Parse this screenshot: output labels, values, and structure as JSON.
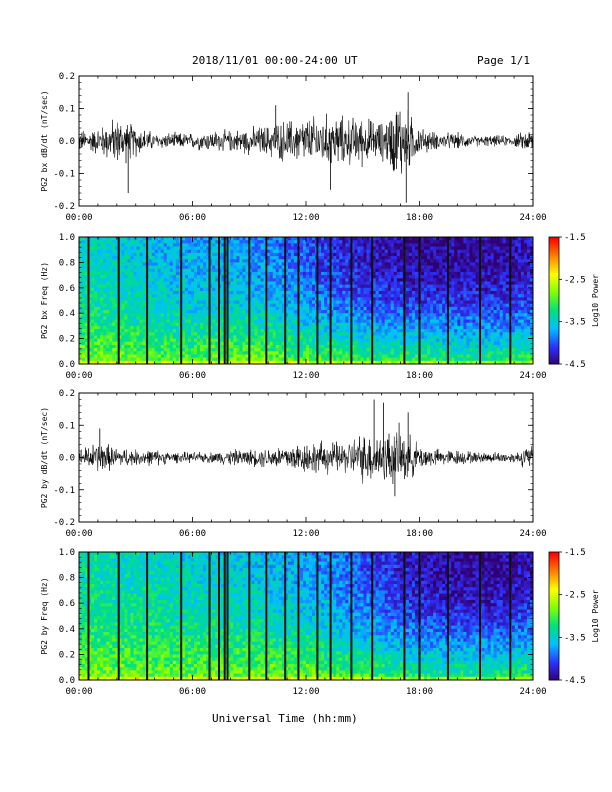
{
  "header": {
    "date_range": "2018/11/01  00:00-24:00 UT",
    "page": "Page 1/1"
  },
  "x_axis": {
    "title": "Universal Time (hh:mm)",
    "ticks": [
      "00:00",
      "06:00",
      "12:00",
      "18:00",
      "24:00"
    ],
    "range_hours": [
      0,
      24
    ]
  },
  "colorbar": {
    "label": "Log10 Power",
    "ticks": [
      "-1.5",
      "-2.5",
      "-3.5",
      "-4.5"
    ],
    "range": [
      -4.5,
      -1.5
    ],
    "colors": [
      "#300070",
      "#3030ff",
      "#00c0ff",
      "#00e080",
      "#80ff00",
      "#ffff00",
      "#ff8000",
      "#ff0000"
    ]
  },
  "chart_data": [
    {
      "type": "line",
      "ylabel": "PG2 bx dB/dt (nT/sec)",
      "ylim": [
        -0.2,
        0.2
      ],
      "yticks": [
        "0.2",
        "0.1",
        "0.0",
        "-0.1",
        "-0.2"
      ],
      "xlim": [
        0,
        24
      ],
      "envelope": {
        "hours": [
          0,
          1,
          2,
          3,
          4,
          5,
          6,
          7,
          8,
          9,
          10,
          11,
          12,
          13,
          14,
          15,
          16,
          17,
          18,
          19,
          20,
          21,
          22,
          23,
          24
        ],
        "amplitude": [
          0.04,
          0.05,
          0.09,
          0.06,
          0.03,
          0.03,
          0.03,
          0.04,
          0.04,
          0.05,
          0.06,
          0.08,
          0.09,
          0.1,
          0.09,
          0.09,
          0.07,
          0.16,
          0.05,
          0.03,
          0.03,
          0.02,
          0.02,
          0.02,
          0.05
        ]
      },
      "spikes": [
        {
          "t": 2.6,
          "v": -0.16
        },
        {
          "t": 17.4,
          "v": 0.15
        },
        {
          "t": 17.3,
          "v": -0.19
        },
        {
          "t": 13.3,
          "v": -0.15
        },
        {
          "t": 10.4,
          "v": 0.11
        }
      ]
    },
    {
      "type": "heatmap",
      "ylabel": "PG2 bx Freq (Hz)",
      "ylim": [
        0.0,
        1.0
      ],
      "yticks": [
        "1.0",
        "0.8",
        "0.6",
        "0.4",
        "0.2",
        "0.0"
      ],
      "xlim": [
        0,
        24
      ],
      "background_log_power": {
        "hours": [
          0,
          2,
          4,
          6,
          8,
          10,
          12,
          14,
          16,
          18,
          20,
          22,
          24
        ],
        "at_1hz": [
          -3.4,
          -3.5,
          -3.6,
          -3.7,
          -3.7,
          -3.8,
          -4.0,
          -4.2,
          -4.3,
          -4.4,
          -4.4,
          -4.4,
          -4.3
        ],
        "at_0hz": [
          -2.8,
          -2.8,
          -2.9,
          -2.9,
          -2.8,
          -2.8,
          -2.9,
          -2.9,
          -3.0,
          -3.0,
          -3.1,
          -3.1,
          -3.0
        ]
      },
      "dark_stripes_hours": [
        0.5,
        2.1,
        3.6,
        5.4,
        6.9,
        7.4,
        7.7,
        7.85,
        9.0,
        9.9,
        10.9,
        11.6,
        12.6,
        13.3,
        14.4,
        15.5,
        17.2,
        18.0,
        19.5,
        21.2,
        22.8
      ]
    },
    {
      "type": "line",
      "ylabel": "PG2 by dB/dt (nT/sec)",
      "ylim": [
        -0.2,
        0.2
      ],
      "yticks": [
        "0.2",
        "0.1",
        "0.0",
        "-0.1",
        "-0.2"
      ],
      "xlim": [
        0,
        24
      ],
      "envelope": {
        "hours": [
          0,
          1,
          2,
          3,
          4,
          5,
          6,
          7,
          8,
          9,
          10,
          11,
          12,
          13,
          14,
          15,
          16,
          17,
          18,
          19,
          20,
          21,
          22,
          23,
          24
        ],
        "amplitude": [
          0.03,
          0.06,
          0.04,
          0.03,
          0.03,
          0.02,
          0.02,
          0.02,
          0.03,
          0.03,
          0.04,
          0.05,
          0.06,
          0.06,
          0.06,
          0.09,
          0.1,
          0.11,
          0.05,
          0.03,
          0.03,
          0.02,
          0.02,
          0.02,
          0.05
        ]
      },
      "spikes": [
        {
          "t": 15.6,
          "v": 0.18
        },
        {
          "t": 16.1,
          "v": 0.17
        },
        {
          "t": 17.4,
          "v": 0.14
        },
        {
          "t": 16.7,
          "v": -0.12
        },
        {
          "t": 1.1,
          "v": 0.09
        }
      ]
    },
    {
      "type": "heatmap",
      "ylabel": "PG2 by Freq (Hz)",
      "ylim": [
        0.0,
        1.0
      ],
      "yticks": [
        "1.0",
        "0.8",
        "0.6",
        "0.4",
        "0.2",
        "0.0"
      ],
      "xlim": [
        0,
        24
      ],
      "background_log_power": {
        "hours": [
          0,
          2,
          4,
          6,
          8,
          10,
          12,
          14,
          16,
          18,
          20,
          22,
          24
        ],
        "at_1hz": [
          -3.3,
          -3.4,
          -3.4,
          -3.5,
          -3.5,
          -3.6,
          -3.7,
          -3.9,
          -4.1,
          -4.3,
          -4.4,
          -4.4,
          -4.3
        ],
        "at_0hz": [
          -2.8,
          -2.8,
          -2.8,
          -2.8,
          -2.8,
          -2.8,
          -2.8,
          -2.9,
          -3.0,
          -3.1,
          -3.1,
          -3.1,
          -3.0
        ]
      },
      "dark_stripes_hours": [
        0.5,
        2.1,
        3.6,
        5.4,
        6.9,
        7.4,
        7.7,
        7.85,
        9.0,
        9.9,
        10.9,
        11.6,
        12.6,
        13.3,
        14.4,
        15.5,
        17.2,
        18.0,
        19.5,
        21.2,
        22.8
      ]
    }
  ]
}
